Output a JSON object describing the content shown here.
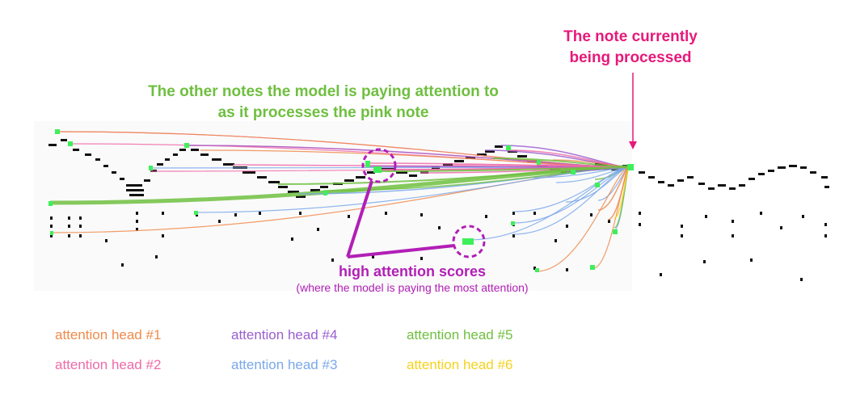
{
  "annotations": {
    "current_note_line1": "The note currently",
    "current_note_line2": "being processed",
    "other_notes_line1": "The other notes the model is paying attention to",
    "other_notes_line2": "as it processes the pink note",
    "high_attention_title": "high attention scores",
    "high_attention_subtitle": "(where the model is paying the most attention)"
  },
  "colors": {
    "pink": "#e6197a",
    "green_text": "#6fbf3f",
    "magenta": "#b11fb6",
    "note_highlight": "#3df05a",
    "note": "#111111"
  },
  "legend": [
    {
      "label": "attention head #1",
      "color": "#f08a4b"
    },
    {
      "label": "attention head #4",
      "color": "#9a5fd0"
    },
    {
      "label": "attention head #5",
      "color": "#6fbf3f"
    },
    {
      "label": "attention head #2",
      "color": "#ef6aa8"
    },
    {
      "label": "attention head #3",
      "color": "#7aa8ea"
    },
    {
      "label": "attention head #6",
      "color": "#f5d21e"
    }
  ]
}
